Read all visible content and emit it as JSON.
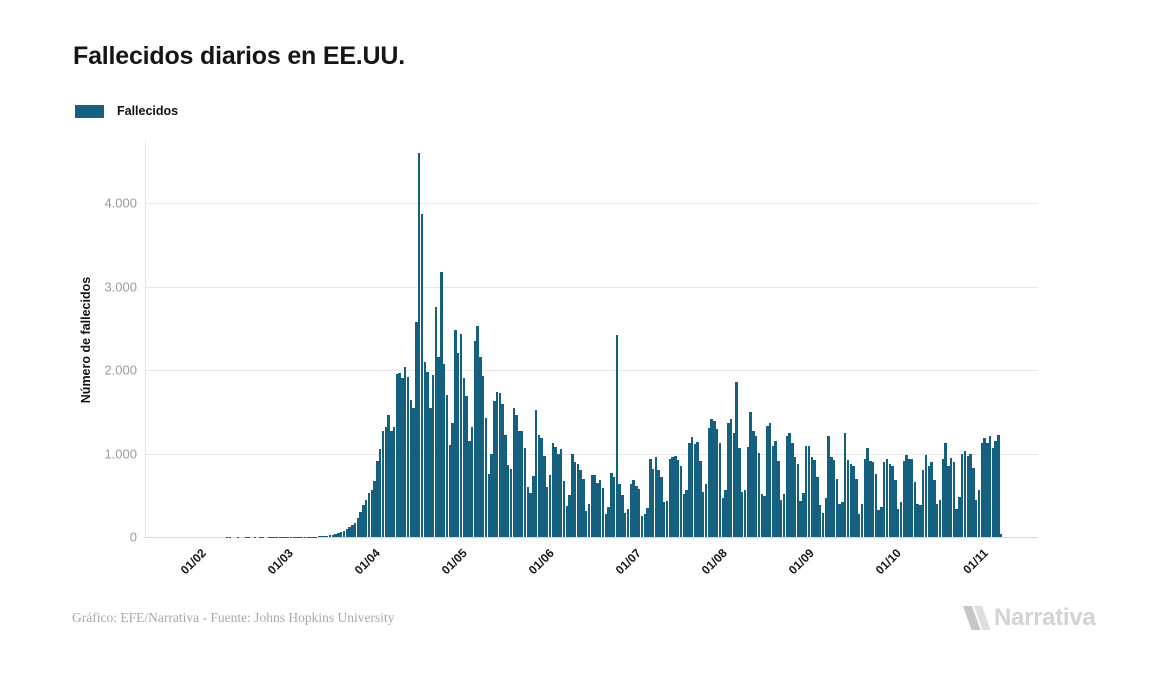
{
  "title": "Fallecidos diarios en EE.UU.",
  "legend": {
    "label": "Fallecidos",
    "color": "#15607F"
  },
  "footer": {
    "credit": "Gráfico: EFE/Narrativa - Fuente: Johns Hopkins University"
  },
  "branding": {
    "name": "Narrativa"
  },
  "chart_data": {
    "type": "bar",
    "title": "Fallecidos diarios en EE.UU.",
    "series_name": "Fallecidos",
    "xlabel": "",
    "ylabel": "Número de fallecidos",
    "bar_color": "#15607F",
    "grid": true,
    "legend_position": "top-left",
    "ylim": [
      0,
      4750
    ],
    "y_tick_values": [
      0,
      1000,
      2000,
      3000,
      4000
    ],
    "y_tick_labels": [
      "0",
      "1.000",
      "2.000",
      "3.000",
      "4.000"
    ],
    "x_tick_labels": [
      "01/02",
      "01/03",
      "01/04",
      "01/05",
      "01/06",
      "01/07",
      "01/08",
      "01/09",
      "01/10",
      "01/11"
    ],
    "x_description": "daily values from late January to 10 November 2020, one bar per day",
    "values": [
      0,
      0,
      0,
      0,
      0,
      0,
      0,
      0,
      0,
      0,
      0,
      0,
      0,
      0,
      0,
      1,
      1,
      0,
      0,
      1,
      0,
      0,
      1,
      1,
      0,
      1,
      0,
      1,
      1,
      0,
      1,
      1,
      1,
      1,
      1,
      1,
      1,
      1,
      2,
      3,
      2,
      5,
      4,
      3,
      4,
      6,
      5,
      6,
      7,
      9,
      12,
      16,
      21,
      26,
      34,
      46,
      59,
      72,
      95,
      118,
      142,
      168,
      228,
      297,
      378,
      445,
      528,
      565,
      665,
      912,
      1055,
      1275,
      1320,
      1465,
      1270,
      1320,
      1950,
      1970,
      1905,
      2035,
      1920,
      1640,
      1540,
      2580,
      4600,
      3870,
      2100,
      1980,
      1550,
      1940,
      2750,
      2160,
      3170,
      2070,
      1700,
      1100,
      1370,
      2480,
      2200,
      2430,
      1900,
      1690,
      1150,
      1320,
      2350,
      2530,
      2150,
      1930,
      1420,
      750,
      1000,
      1630,
      1740,
      1720,
      1590,
      1220,
      860,
      810,
      1550,
      1460,
      1270,
      1270,
      1060,
      600,
      530,
      730,
      1520,
      1220,
      1190,
      970,
      600,
      740,
      1130,
      1080,
      990,
      1050,
      670,
      370,
      500,
      990,
      900,
      870,
      800,
      700,
      310,
      390,
      740,
      740,
      650,
      680,
      590,
      270,
      360,
      770,
      720,
      2425,
      640,
      500,
      290,
      330,
      640,
      680,
      610,
      580,
      250,
      270,
      350,
      930,
      810,
      960,
      800,
      720,
      420,
      430,
      940,
      960,
      970,
      920,
      850,
      510,
      560,
      1120,
      1200,
      1110,
      1140,
      910,
      540,
      630,
      1300,
      1410,
      1390,
      1290,
      1130,
      470,
      560,
      1360,
      1410,
      1240,
      1860,
      1060,
      540,
      560,
      1080,
      1500,
      1270,
      1210,
      1010,
      510,
      490,
      1330,
      1360,
      1090,
      1150,
      910,
      440,
      510,
      1210,
      1240,
      1130,
      960,
      880,
      430,
      530,
      1090,
      1090,
      960,
      920,
      720,
      380,
      290,
      470,
      1210,
      960,
      920,
      690,
      390,
      420,
      1240,
      920,
      870,
      850,
      690,
      270,
      390,
      930,
      1070,
      910,
      900,
      750,
      320,
      360,
      900,
      940,
      870,
      850,
      680,
      330,
      420,
      910,
      980,
      940,
      930,
      660,
      390,
      380,
      800,
      980,
      850,
      900,
      680,
      390,
      440,
      930,
      1120,
      850,
      950,
      900,
      340,
      480,
      1000,
      1030,
      970,
      1000,
      830,
      440,
      560,
      1130,
      1190,
      1120,
      1210,
      1060,
      1150,
      1220,
      40
    ]
  }
}
